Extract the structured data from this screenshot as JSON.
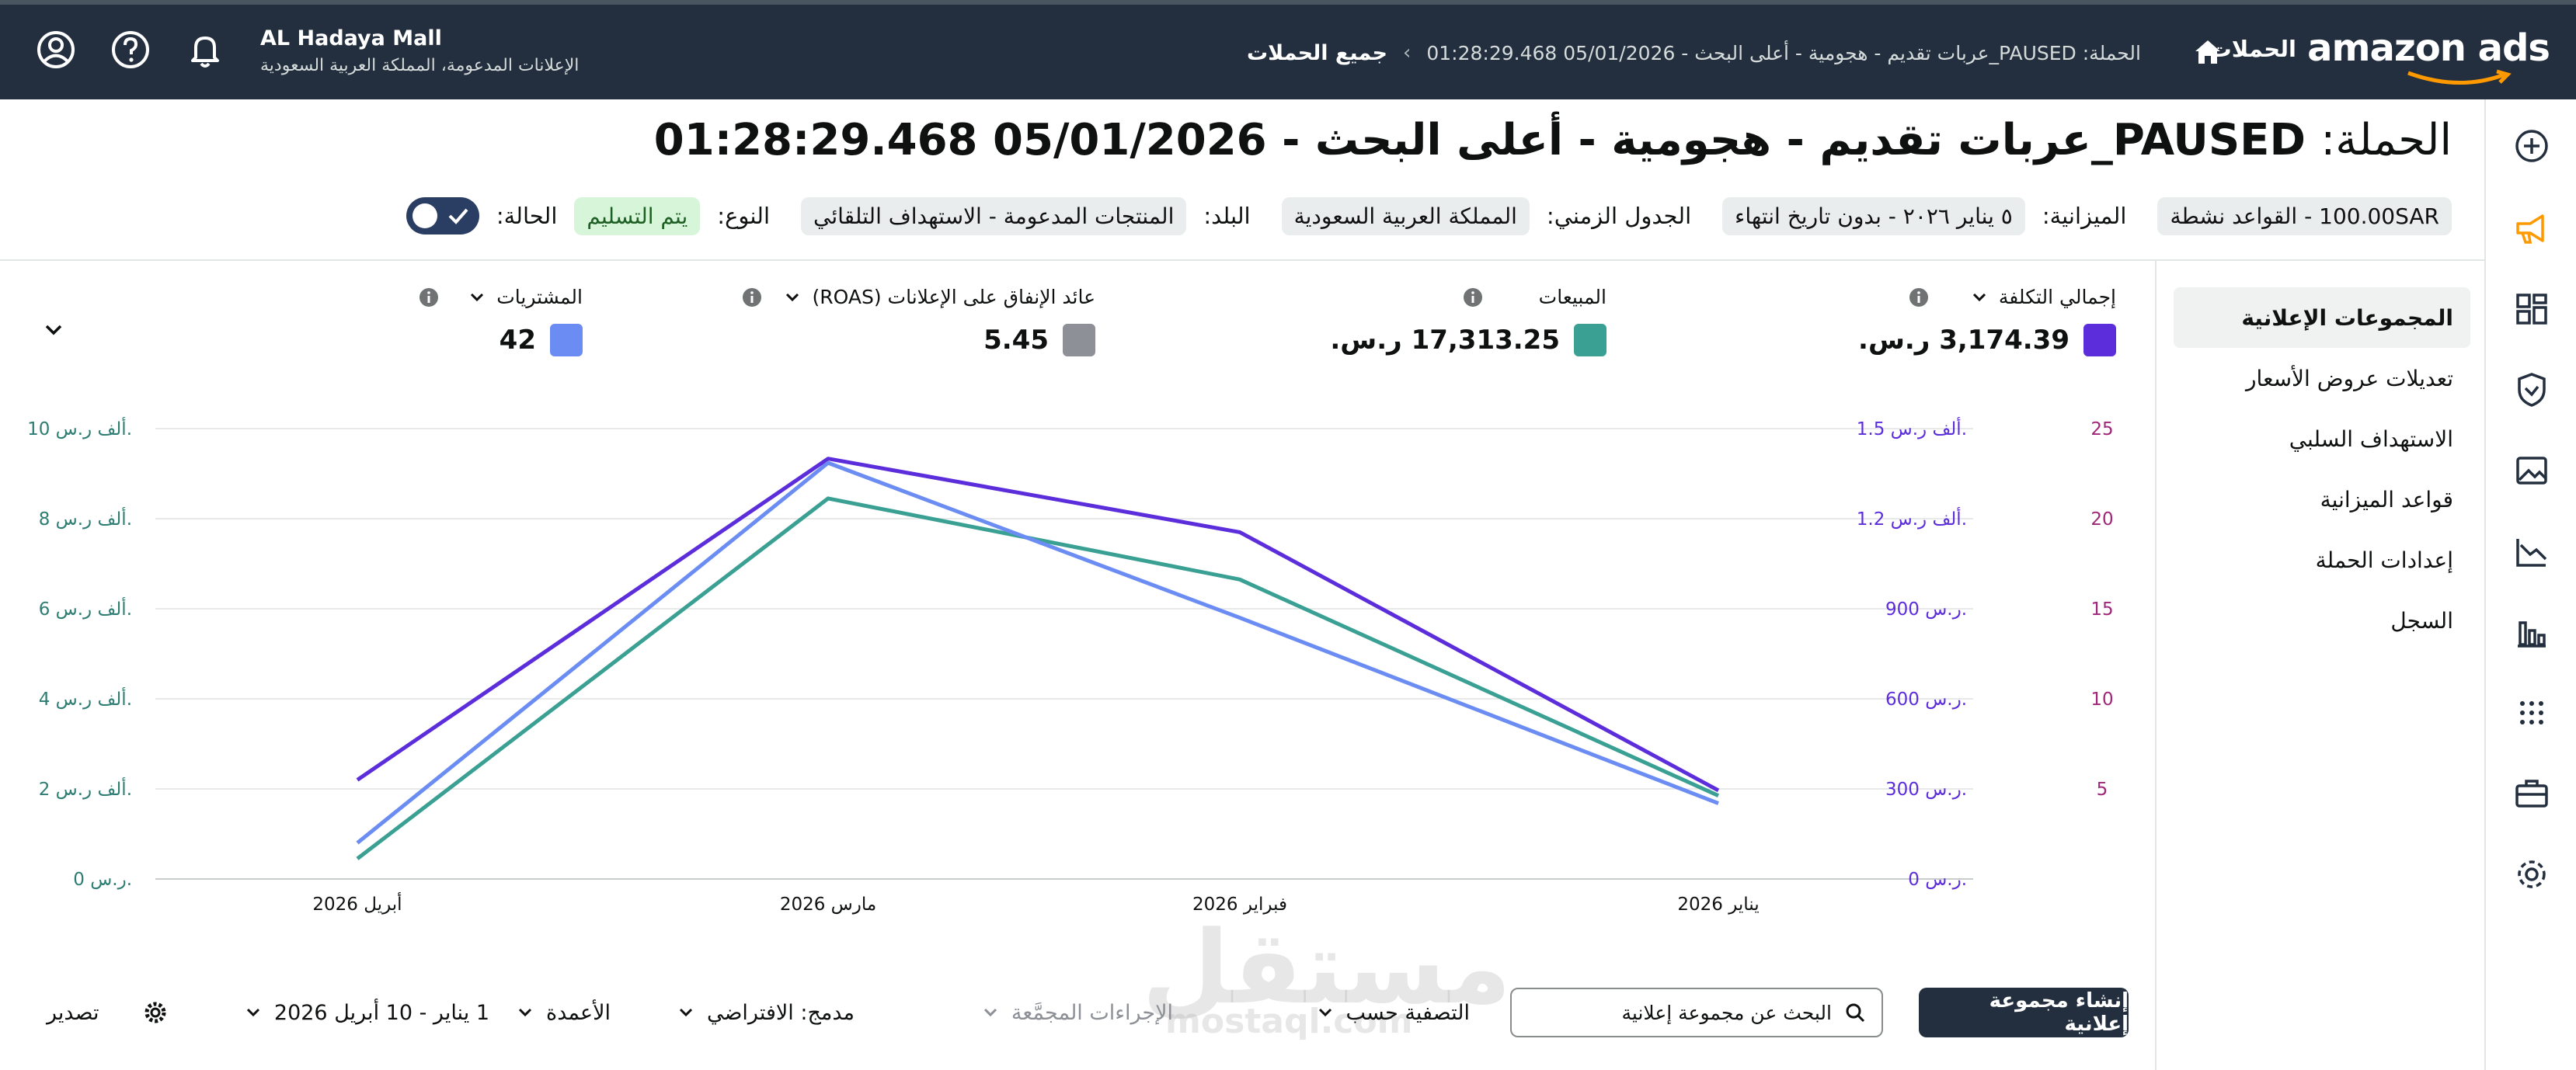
{
  "header": {
    "account_name": "AL Hadaya Mall",
    "account_sub": "الإعلانات المدعومة، المملكة العربية السعودية",
    "breadcrumb": {
      "all_campaigns": "جميع الحملات",
      "separator": "›",
      "current": "الحملة: PAUSED_عربات تقديم - هجومية - أعلى البحث - 05/01/2026 01:28:29.468"
    },
    "nav_campaigns": "الحملات",
    "logo_text": "amazon ads",
    "icons": [
      "account-circle-icon",
      "help-icon",
      "bell-icon",
      "home-icon"
    ]
  },
  "page": {
    "title_label": "الحملة:",
    "title_value": "PAUSED_عربات تقديم - هجومية - أعلى البحث - 05/01/2026 01:28:29.468",
    "status_label": "الحالة:",
    "status_value": "يتم التسليم",
    "type_label": "النوع:",
    "type_value": "المنتجات المدعومة - الاستهداف التلقائي",
    "country_label": "البلد:",
    "country_value": "المملكة العربية السعودية",
    "schedule_label": "الجدول الزمني:",
    "schedule_value": "٥ يناير ٢٠٢٦ - بدون تاريخ انتهاء",
    "budget_label": "الميزانية:",
    "budget_value": "100.00SAR - القواعد نشطة"
  },
  "sidenav": {
    "items": [
      {
        "label": "المجموعات الإعلانية",
        "active": true
      },
      {
        "label": "تعديلات عروض الأسعار"
      },
      {
        "label": "الاستهداف السلبي"
      },
      {
        "label": "قواعد الميزانية"
      },
      {
        "label": "إعدادات الحملة"
      },
      {
        "label": "السجل"
      }
    ]
  },
  "rail_icons": [
    "add-icon",
    "megaphone-icon",
    "dashboard-icon",
    "shield-icon",
    "image-icon",
    "trend-icon",
    "bar-chart-icon",
    "apps-grid-icon",
    "briefcase-icon",
    "settings-icon"
  ],
  "metrics": [
    {
      "label": "إجمالي التكلفة",
      "value": "3,174.39 ر.س.",
      "color": "#5b2ddb"
    },
    {
      "label": "المبيعات",
      "value": "17,313.25 ر.س.",
      "color": "#3aa093"
    },
    {
      "label": "عائد الإنفاق على الإعلانات (ROAS)",
      "value": "5.45",
      "color": "#8d9096"
    },
    {
      "label": "المشتريات",
      "value": "42",
      "color": "#6b8cf2"
    }
  ],
  "chart_data": {
    "type": "line",
    "categories": [
      "يناير 2026",
      "فبراير 2026",
      "مارس 2026",
      "أبريل 2026"
    ],
    "y_left": {
      "ticks": [
        "0 ر.س.",
        "2 ألف ر.س.",
        "4 ألف ر.س.",
        "6 ألف ر.س.",
        "8 ألف ر.س.",
        "10 ألف ر.س."
      ],
      "range": [
        0,
        10000
      ],
      "color": "#2e7d72"
    },
    "y_right_cost": {
      "ticks": [
        "0 ر.س.",
        "300 ر.س.",
        "600 ر.س.",
        "900 ر.س.",
        "1.2 ألف ر.س.",
        "1.5 ألف ر.س."
      ],
      "range": [
        0,
        1500
      ],
      "color": "#5b2ddb"
    },
    "y_right_purchases": {
      "ticks": [
        "5",
        "10",
        "15",
        "20",
        "25"
      ],
      "range": [
        0,
        25
      ],
      "color": "#a0267a"
    },
    "series": [
      {
        "name": "إجمالي التكلفة",
        "axis": "cost",
        "color": "#5b2ddb",
        "values": [
          295,
          1155,
          1400,
          330
        ]
      },
      {
        "name": "المبيعات",
        "axis": "sales",
        "color": "#3aa093",
        "values": [
          1850,
          6650,
          8450,
          450
        ]
      },
      {
        "name": "المشتريات",
        "axis": "purchases",
        "color": "#6b8cf2",
        "values": [
          4.2,
          14.5,
          23.1,
          2
        ]
      }
    ],
    "grid": true
  },
  "toolbar": {
    "create_button": "إنشاء مجموعة إعلانية",
    "search_placeholder": "البحث عن مجموعة إعلانية",
    "filter_label": "التصفية حسب",
    "bulk_actions": "الإجراءات المجمَّعة",
    "combined_label": "مدمج: الافتراضي",
    "columns_label": "الأعمدة",
    "date_range": "1 يناير - 10 أبريل 2026",
    "export_label": "تصدير"
  },
  "watermark": {
    "text": "مستقل",
    "sub": "mostaql.com"
  }
}
